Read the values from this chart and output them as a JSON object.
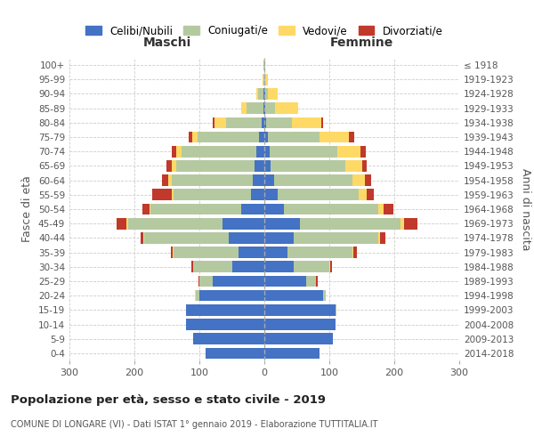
{
  "age_groups": [
    "0-4",
    "5-9",
    "10-14",
    "15-19",
    "20-24",
    "25-29",
    "30-34",
    "35-39",
    "40-44",
    "45-49",
    "50-54",
    "55-59",
    "60-64",
    "65-69",
    "70-74",
    "75-79",
    "80-84",
    "85-89",
    "90-94",
    "95-99",
    "100+"
  ],
  "birth_years": [
    "2014-2018",
    "2009-2013",
    "2004-2008",
    "1999-2003",
    "1994-1998",
    "1989-1993",
    "1984-1988",
    "1979-1983",
    "1974-1978",
    "1969-1973",
    "1964-1968",
    "1959-1963",
    "1954-1958",
    "1949-1953",
    "1944-1948",
    "1939-1943",
    "1934-1938",
    "1929-1933",
    "1924-1928",
    "1919-1923",
    "≤ 1918"
  ],
  "male": {
    "celibi": [
      90,
      110,
      120,
      120,
      100,
      80,
      50,
      40,
      55,
      65,
      35,
      20,
      18,
      15,
      12,
      8,
      4,
      2,
      1,
      0,
      0
    ],
    "coniugati": [
      0,
      0,
      0,
      1,
      5,
      20,
      60,
      100,
      130,
      145,
      140,
      120,
      125,
      120,
      115,
      95,
      55,
      25,
      8,
      2,
      1
    ],
    "vedovi": [
      0,
      0,
      0,
      0,
      2,
      0,
      0,
      1,
      1,
      2,
      2,
      3,
      5,
      8,
      8,
      8,
      18,
      8,
      3,
      1,
      0
    ],
    "divorziati": [
      0,
      0,
      0,
      0,
      0,
      2,
      2,
      3,
      5,
      15,
      10,
      30,
      10,
      8,
      8,
      5,
      2,
      0,
      0,
      0,
      0
    ]
  },
  "female": {
    "nubili": [
      85,
      105,
      110,
      110,
      90,
      65,
      45,
      35,
      45,
      55,
      30,
      20,
      15,
      10,
      8,
      5,
      3,
      2,
      1,
      0,
      0
    ],
    "coniugate": [
      0,
      0,
      0,
      1,
      5,
      15,
      55,
      100,
      130,
      155,
      145,
      125,
      120,
      115,
      105,
      80,
      40,
      15,
      5,
      2,
      1
    ],
    "vedove": [
      0,
      0,
      0,
      0,
      0,
      0,
      1,
      2,
      3,
      5,
      8,
      12,
      20,
      25,
      35,
      45,
      45,
      35,
      15,
      3,
      0
    ],
    "divorziate": [
      0,
      0,
      0,
      0,
      0,
      2,
      3,
      5,
      8,
      20,
      15,
      12,
      10,
      8,
      8,
      8,
      2,
      0,
      0,
      0,
      0
    ]
  },
  "colors": {
    "celibi": "#4472C4",
    "coniugati": "#b5c9a0",
    "vedovi": "#ffd966",
    "divorziati": "#c0392b"
  },
  "title": "Popolazione per età, sesso e stato civile - 2019",
  "subtitle": "COMUNE DI LONGARE (VI) - Dati ISTAT 1° gennaio 2019 - Elaborazione TUTTITALIA.IT",
  "xlabel_left": "Maschi",
  "xlabel_right": "Femmine",
  "ylabel_left": "Fasce di età",
  "ylabel_right": "Anni di nascita",
  "xlim": 300,
  "legend_labels": [
    "Celibi/Nubili",
    "Coniugati/e",
    "Vedovi/e",
    "Divorziati/e"
  ]
}
